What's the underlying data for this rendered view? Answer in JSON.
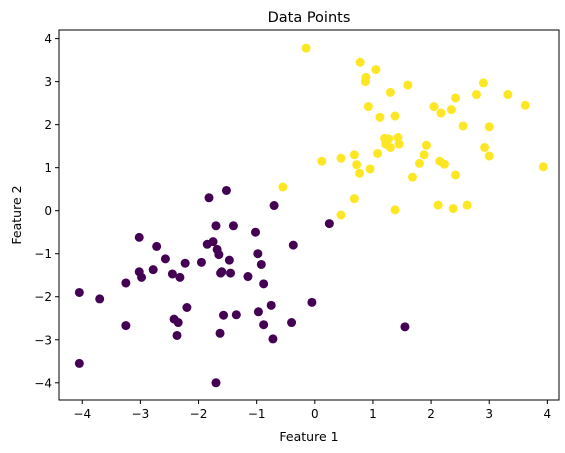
{
  "chart_data": {
    "type": "scatter",
    "title": "Data Points",
    "xlabel": "Feature 1",
    "ylabel": "Feature 2",
    "xlim": [
      -4.4,
      4.2
    ],
    "ylim": [
      -4.4,
      4.2
    ],
    "xticks": [
      -4,
      -3,
      -2,
      -1,
      0,
      1,
      2,
      3,
      4
    ],
    "yticks": [
      -4,
      -3,
      -2,
      -1,
      0,
      1,
      2,
      3,
      4
    ],
    "grid": false,
    "legend": "none",
    "series": [
      {
        "color": "#440154",
        "points": [
          [
            -4.05,
            -1.9
          ],
          [
            -4.05,
            -3.55
          ],
          [
            -3.7,
            -2.05
          ],
          [
            -3.25,
            -1.68
          ],
          [
            -3.25,
            -2.67
          ],
          [
            -3.02,
            -0.62
          ],
          [
            -3.02,
            -1.42
          ],
          [
            -2.98,
            -1.55
          ],
          [
            -2.78,
            -1.37
          ],
          [
            -2.72,
            -0.83
          ],
          [
            -2.57,
            -1.12
          ],
          [
            -2.45,
            -1.47
          ],
          [
            -2.42,
            -2.52
          ],
          [
            -2.37,
            -2.9
          ],
          [
            -2.35,
            -2.6
          ],
          [
            -2.32,
            -1.55
          ],
          [
            -2.23,
            -1.22
          ],
          [
            -2.2,
            -2.25
          ],
          [
            -1.95,
            -1.2
          ],
          [
            -1.85,
            -0.78
          ],
          [
            -1.82,
            0.3
          ],
          [
            -1.75,
            -0.72
          ],
          [
            -1.7,
            -0.35
          ],
          [
            -1.7,
            -4.0
          ],
          [
            -1.68,
            -0.9
          ],
          [
            -1.65,
            -1.02
          ],
          [
            -1.63,
            -2.85
          ],
          [
            -1.62,
            -1.45
          ],
          [
            -1.6,
            -1.42
          ],
          [
            -1.57,
            -2.43
          ],
          [
            -1.52,
            0.47
          ],
          [
            -1.47,
            -1.15
          ],
          [
            -1.45,
            -1.45
          ],
          [
            -1.4,
            -0.35
          ],
          [
            -1.35,
            -2.42
          ],
          [
            -1.15,
            -1.53
          ],
          [
            -1.02,
            -0.5
          ],
          [
            -0.98,
            -1.0
          ],
          [
            -0.97,
            -2.35
          ],
          [
            -0.92,
            -1.25
          ],
          [
            -0.88,
            -1.7
          ],
          [
            -0.88,
            -2.65
          ],
          [
            -0.75,
            -2.2
          ],
          [
            -0.72,
            -2.98
          ],
          [
            -0.7,
            0.12
          ],
          [
            -0.4,
            -2.6
          ],
          [
            -0.37,
            -0.8
          ],
          [
            -0.05,
            -2.13
          ],
          [
            0.25,
            -0.3
          ],
          [
            1.55,
            -2.7
          ]
        ]
      },
      {
        "color": "#fde725",
        "points": [
          [
            -0.15,
            3.78
          ],
          [
            -0.55,
            0.55
          ],
          [
            0.12,
            1.15
          ],
          [
            0.45,
            1.22
          ],
          [
            0.45,
            -0.1
          ],
          [
            0.68,
            1.3
          ],
          [
            0.68,
            0.28
          ],
          [
            0.72,
            1.07
          ],
          [
            0.77,
            0.87
          ],
          [
            0.78,
            3.45
          ],
          [
            0.87,
            3.0
          ],
          [
            0.88,
            3.1
          ],
          [
            0.92,
            2.42
          ],
          [
            0.95,
            0.97
          ],
          [
            1.05,
            3.28
          ],
          [
            1.08,
            1.33
          ],
          [
            1.12,
            2.17
          ],
          [
            1.2,
            1.68
          ],
          [
            1.22,
            1.55
          ],
          [
            1.27,
            1.67
          ],
          [
            1.3,
            1.47
          ],
          [
            1.3,
            2.75
          ],
          [
            1.38,
            2.2
          ],
          [
            1.38,
            0.02
          ],
          [
            1.43,
            1.7
          ],
          [
            1.45,
            1.55
          ],
          [
            1.6,
            2.92
          ],
          [
            1.68,
            0.78
          ],
          [
            1.8,
            1.1
          ],
          [
            1.88,
            1.3
          ],
          [
            1.92,
            1.52
          ],
          [
            2.05,
            2.42
          ],
          [
            2.12,
            0.13
          ],
          [
            2.15,
            1.15
          ],
          [
            2.17,
            2.27
          ],
          [
            2.23,
            1.08
          ],
          [
            2.35,
            2.35
          ],
          [
            2.38,
            0.05
          ],
          [
            2.42,
            2.62
          ],
          [
            2.42,
            0.83
          ],
          [
            2.55,
            1.97
          ],
          [
            2.62,
            0.13
          ],
          [
            2.78,
            2.7
          ],
          [
            2.9,
            2.97
          ],
          [
            2.92,
            1.47
          ],
          [
            3.0,
            1.95
          ],
          [
            3.0,
            1.27
          ],
          [
            3.32,
            2.7
          ],
          [
            3.62,
            2.45
          ],
          [
            3.93,
            1.02
          ]
        ]
      }
    ]
  }
}
